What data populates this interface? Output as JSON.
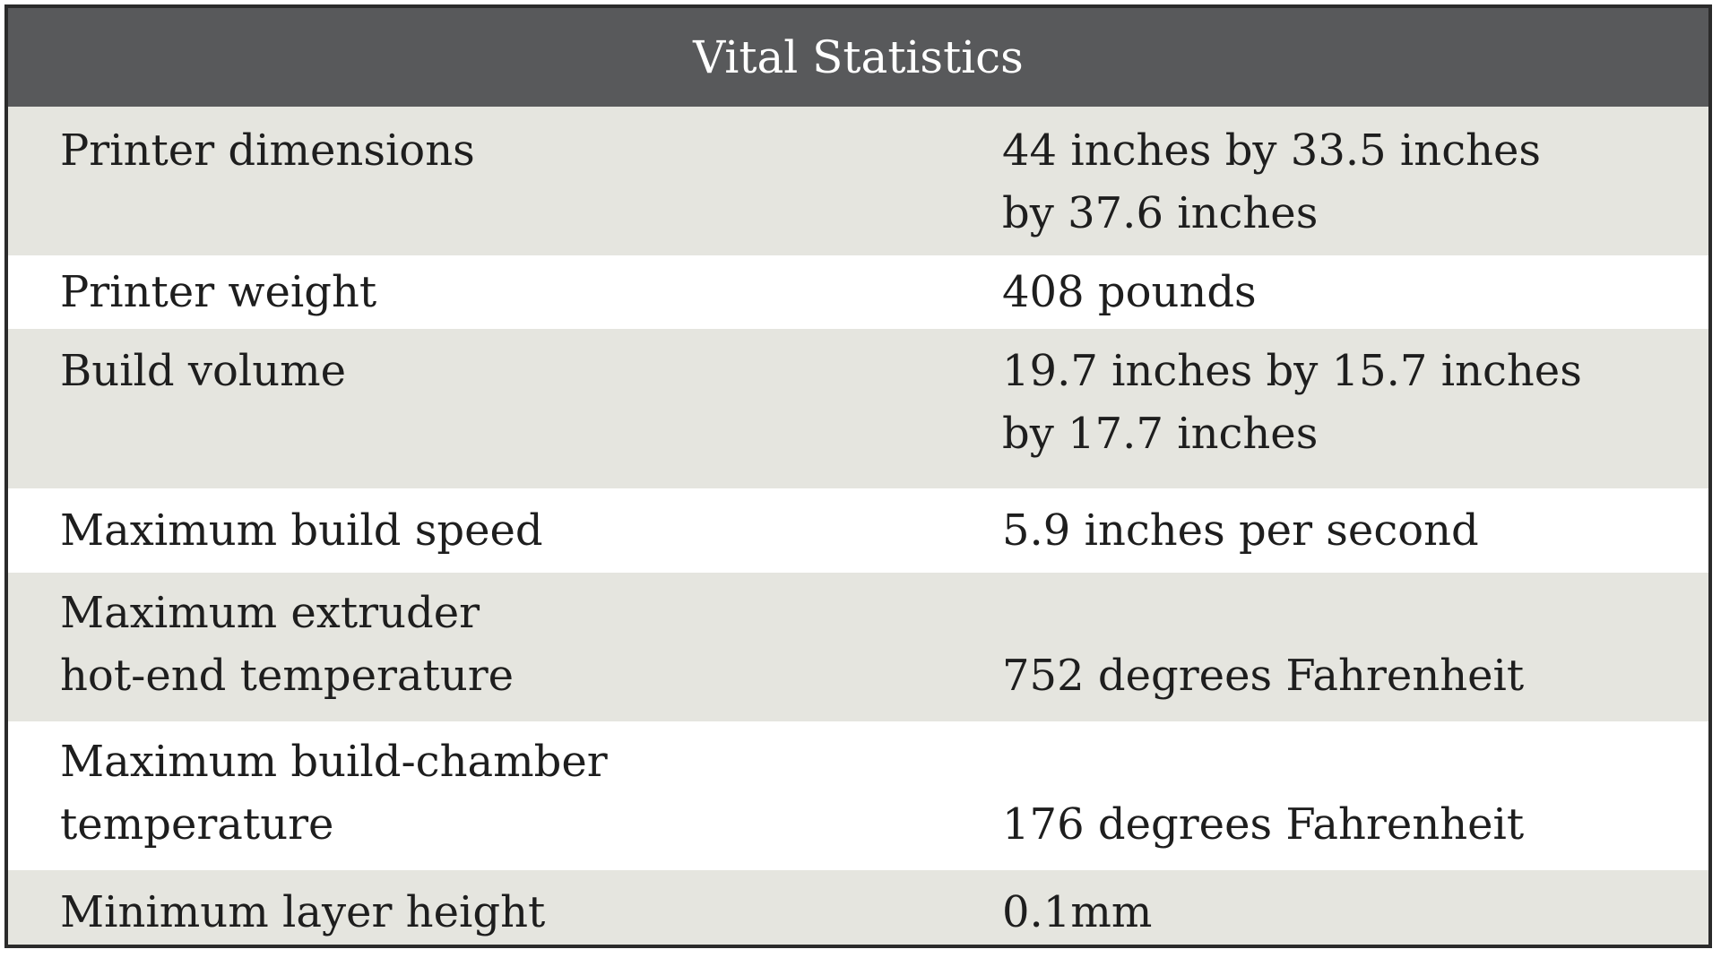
{
  "table": {
    "title": "Vital Statistics",
    "rows": [
      {
        "label": [
          "Printer dimensions"
        ],
        "value": [
          "44 inches by 33.5 inches",
          "by 37.6 inches"
        ]
      },
      {
        "label": [
          "Printer weight"
        ],
        "value": [
          "408 pounds"
        ]
      },
      {
        "label": [
          "Build volume"
        ],
        "value": [
          "19.7 inches by 15.7 inches",
          "by 17.7 inches"
        ]
      },
      {
        "label": [
          "Maximum build speed"
        ],
        "value": [
          "5.9 inches per second"
        ]
      },
      {
        "label": [
          "Maximum extruder",
          "hot-end temperature"
        ],
        "value": [
          "752 degrees Fahrenheit"
        ]
      },
      {
        "label": [
          "Maximum build-chamber",
          "temperature"
        ],
        "value": [
          "176 degrees Fahrenheit"
        ]
      },
      {
        "label": [
          "Minimum layer height"
        ],
        "value": [
          "0.1mm"
        ]
      }
    ]
  },
  "colors": {
    "header_background": "#58595b",
    "header_text": "#ffffff",
    "shaded_row": "#e5e5df",
    "plain_row": "#ffffff",
    "border": "#2b2b2b"
  }
}
